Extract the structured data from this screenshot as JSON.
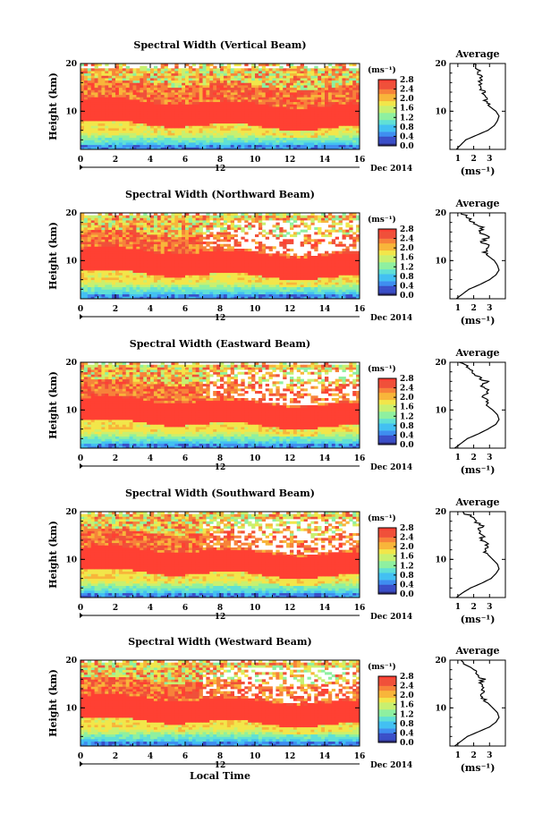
{
  "chart_data": [
    {
      "type": "heatmap",
      "title": "Spectral Width (Vertical Beam)",
      "ylabel": "Height (km)",
      "x_ticks": [
        "0",
        "2",
        "4",
        "6",
        "8",
        "10",
        "12",
        "14",
        "16"
      ],
      "xlim": [
        0,
        16
      ],
      "ylim": [
        2,
        20
      ],
      "y_ticks": [
        "20",
        "10"
      ],
      "date_mark": "12",
      "date_label": "Dec 2014",
      "colorbar": {
        "unit": "(ms⁻¹)",
        "ticks": [
          "2.8",
          "2.4",
          "2.0",
          "1.6",
          "1.2",
          "0.8",
          "0.4",
          "0.0"
        ],
        "range": [
          0,
          2.8
        ]
      },
      "profile": {
        "title": "Average",
        "x_ticks": [
          "1",
          "2",
          "3"
        ],
        "xlabel": "(ms⁻¹)",
        "y_ticks": [
          "20",
          "10"
        ],
        "height": [
          2,
          3,
          4,
          5,
          6,
          7,
          8,
          9,
          10,
          11,
          12,
          13,
          14,
          15,
          16,
          17,
          18,
          19,
          20
        ],
        "value": [
          0.9,
          1.2,
          1.5,
          2.2,
          2.9,
          3.3,
          3.5,
          3.6,
          3.4,
          3.0,
          2.8,
          2.7,
          2.6,
          2.5,
          2.45,
          2.4,
          2.3,
          2.2,
          2.0
        ]
      }
    },
    {
      "type": "heatmap",
      "title": "Spectral Width (Northward Beam)",
      "ylabel": "Height (km)",
      "x_ticks": [
        "0",
        "2",
        "4",
        "6",
        "8",
        "10",
        "12",
        "14",
        "16"
      ],
      "xlim": [
        0,
        16
      ],
      "ylim": [
        2,
        20
      ],
      "y_ticks": [
        "20",
        "10"
      ],
      "date_mark": "12",
      "date_label": "Dec 2014",
      "colorbar": {
        "unit": "(ms⁻¹)",
        "ticks": [
          "2.8",
          "2.4",
          "2.0",
          "1.6",
          "1.2",
          "0.8",
          "0.4",
          "0.0"
        ],
        "range": [
          0,
          2.8
        ]
      },
      "profile": {
        "title": "Average",
        "x_ticks": [
          "1",
          "2",
          "3"
        ],
        "xlabel": "(ms⁻¹)",
        "y_ticks": [
          "20",
          "10"
        ],
        "height": [
          2,
          3,
          4,
          5,
          6,
          7,
          8,
          9,
          10,
          11,
          12,
          13,
          14,
          15,
          16,
          17,
          18,
          19,
          20
        ],
        "value": [
          0.9,
          1.3,
          1.7,
          2.4,
          3.0,
          3.4,
          3.6,
          3.5,
          3.3,
          2.9,
          2.7,
          3.1,
          2.5,
          2.9,
          2.4,
          2.6,
          2.0,
          1.7,
          1.2
        ]
      }
    },
    {
      "type": "heatmap",
      "title": "Spectral Width (Eastward Beam)",
      "ylabel": "Height (km)",
      "x_ticks": [
        "0",
        "2",
        "4",
        "6",
        "8",
        "10",
        "12",
        "14",
        "16"
      ],
      "xlim": [
        0,
        16
      ],
      "ylim": [
        2,
        20
      ],
      "y_ticks": [
        "20",
        "10"
      ],
      "date_mark": "12",
      "date_label": "Dec 2014",
      "colorbar": {
        "unit": "(ms⁻¹)",
        "ticks": [
          "2.8",
          "2.4",
          "2.0",
          "1.6",
          "1.2",
          "0.8",
          "0.4",
          "0.0"
        ],
        "range": [
          0,
          2.8
        ]
      },
      "profile": {
        "title": "Average",
        "x_ticks": [
          "1",
          "2",
          "3"
        ],
        "xlabel": "(ms⁻¹)",
        "y_ticks": [
          "20",
          "10"
        ],
        "height": [
          2,
          3,
          4,
          5,
          6,
          7,
          8,
          9,
          10,
          11,
          12,
          13,
          14,
          15,
          16,
          17,
          18,
          19,
          20
        ],
        "value": [
          0.8,
          1.2,
          1.6,
          2.3,
          2.9,
          3.4,
          3.6,
          3.5,
          3.2,
          2.8,
          3.0,
          2.6,
          2.9,
          2.4,
          2.8,
          2.2,
          2.0,
          1.6,
          1.1
        ]
      }
    },
    {
      "type": "heatmap",
      "title": "Spectral Width (Southward Beam)",
      "ylabel": "Height (km)",
      "x_ticks": [
        "0",
        "2",
        "4",
        "6",
        "8",
        "10",
        "12",
        "14",
        "16"
      ],
      "xlim": [
        0,
        16
      ],
      "ylim": [
        2,
        20
      ],
      "y_ticks": [
        "20",
        "10"
      ],
      "date_mark": "12",
      "date_label": "Dec 2014",
      "colorbar": {
        "unit": "(ms⁻¹)",
        "ticks": [
          "2.8",
          "2.4",
          "2.0",
          "1.6",
          "1.2",
          "0.8",
          "0.4",
          "0.0"
        ],
        "range": [
          0,
          2.8
        ]
      },
      "profile": {
        "title": "Average",
        "x_ticks": [
          "1",
          "2",
          "3"
        ],
        "xlabel": "(ms⁻¹)",
        "y_ticks": [
          "20",
          "10"
        ],
        "height": [
          2,
          3,
          4,
          5,
          6,
          7,
          8,
          9,
          10,
          11,
          12,
          13,
          14,
          15,
          16,
          17,
          18,
          19,
          20
        ],
        "value": [
          0.9,
          1.3,
          1.8,
          2.5,
          3.1,
          3.4,
          3.6,
          3.5,
          3.2,
          2.9,
          2.6,
          2.9,
          2.5,
          2.6,
          2.4,
          2.5,
          2.1,
          1.8,
          1.3
        ]
      }
    },
    {
      "type": "heatmap",
      "title": "Spectral Width (Westward Beam)",
      "ylabel": "Height (km)",
      "xlabel": "Local Time",
      "x_ticks": [
        "0",
        "2",
        "4",
        "6",
        "8",
        "10",
        "12",
        "14",
        "16"
      ],
      "xlim": [
        0,
        16
      ],
      "ylim": [
        2,
        20
      ],
      "y_ticks": [
        "20",
        "10"
      ],
      "date_mark": "12",
      "date_label": "Dec 2014",
      "colorbar": {
        "unit": "(ms⁻¹)",
        "ticks": [
          "2.8",
          "2.4",
          "2.0",
          "1.6",
          "1.2",
          "0.8",
          "0.4",
          "0.0"
        ],
        "range": [
          0,
          2.8
        ]
      },
      "profile": {
        "title": "Average",
        "x_ticks": [
          "1",
          "2",
          "3"
        ],
        "xlabel": "(ms⁻¹)",
        "y_ticks": [
          "20",
          "10"
        ],
        "height": [
          2,
          3,
          4,
          5,
          6,
          7,
          8,
          9,
          10,
          11,
          12,
          13,
          14,
          15,
          16,
          17,
          18,
          19,
          20
        ],
        "value": [
          0.8,
          1.2,
          1.6,
          2.3,
          3.0,
          3.4,
          3.6,
          3.5,
          3.2,
          2.9,
          2.6,
          2.5,
          2.7,
          2.4,
          2.6,
          2.2,
          2.0,
          1.6,
          1.2
        ]
      }
    }
  ],
  "colors": {
    "colormap": [
      "#2b2b7a",
      "#3a4fc8",
      "#3f8ef0",
      "#43c0f2",
      "#5fe0d6",
      "#8ef0a0",
      "#c8f070",
      "#f2e64a",
      "#f8b53a",
      "#f7823a",
      "#f0503a",
      "#ff4033"
    ]
  }
}
